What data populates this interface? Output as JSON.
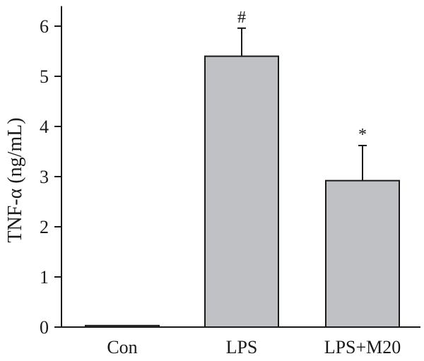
{
  "chart_data": {
    "type": "bar",
    "title": "",
    "xlabel": "",
    "ylabel": "TNF-α (ng/mL)",
    "ylim": [
      0,
      6.4
    ],
    "yticks": [
      0,
      1,
      2,
      3,
      4,
      5,
      6
    ],
    "categories": [
      "Con",
      "LPS",
      "LPS+M20"
    ],
    "values": [
      0.03,
      5.4,
      2.92
    ],
    "errors": [
      0,
      0.56,
      0.7
    ],
    "annotations": [
      "",
      "#",
      "*"
    ],
    "grid": false,
    "legend": "none",
    "bar_color": "#c0c1c5",
    "edge_color": "#1a1a1a"
  }
}
